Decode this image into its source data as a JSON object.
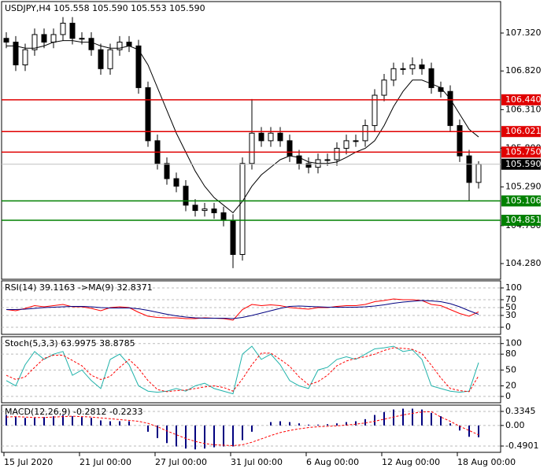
{
  "chart_data": [
    {
      "type": "candlestick",
      "title": "USDJPY,H4  105.558 105.590 105.553 105.590",
      "categories": [
        "15 Jul 2020",
        null,
        null,
        null,
        null,
        null,
        null,
        null,
        "21 Jul 00:00",
        null,
        null,
        null,
        null,
        null,
        null,
        null,
        "27 Jul 00:00",
        null,
        null,
        null,
        null,
        null,
        null,
        null,
        "31 Jul 00:00",
        null,
        null,
        null,
        null,
        null,
        null,
        null,
        "6 Aug 00:00",
        null,
        null,
        null,
        null,
        null,
        null,
        null,
        "12 Aug 00:00",
        null,
        null,
        null,
        null,
        null,
        null,
        null,
        "18 Aug 00:00",
        null,
        null
      ],
      "open": [
        107.25,
        107.2,
        106.9,
        107.1,
        107.3,
        107.2,
        107.3,
        107.45,
        107.25,
        107.25,
        107.1,
        106.85,
        107.1,
        107.2,
        107.15,
        106.6,
        105.9,
        105.6,
        105.4,
        105.3,
        105.05,
        104.98,
        105.0,
        104.95,
        104.85,
        104.4,
        105.6,
        106.0,
        105.9,
        106.0,
        105.9,
        105.7,
        105.6,
        105.55,
        105.65,
        105.65,
        105.8,
        105.9,
        105.9,
        106.1,
        106.5,
        106.7,
        106.85,
        106.85,
        106.9,
        106.85,
        106.6,
        106.55,
        106.1,
        105.7,
        105.35
      ],
      "high": [
        107.33,
        107.28,
        107.18,
        107.38,
        107.38,
        107.38,
        107.53,
        107.53,
        107.33,
        107.33,
        107.18,
        107.18,
        107.28,
        107.28,
        107.23,
        106.68,
        105.98,
        105.68,
        105.48,
        105.38,
        105.13,
        105.08,
        105.08,
        105.03,
        104.93,
        105.68,
        106.45,
        106.08,
        106.08,
        106.08,
        105.98,
        105.78,
        105.68,
        105.73,
        105.73,
        105.88,
        105.98,
        105.98,
        106.18,
        106.58,
        106.78,
        106.93,
        106.93,
        107.0,
        106.98,
        106.93,
        106.68,
        106.63,
        106.18,
        105.78,
        105.63
      ],
      "low": [
        107.12,
        106.82,
        106.82,
        107.02,
        107.12,
        107.12,
        107.22,
        107.17,
        107.17,
        107.02,
        106.77,
        106.77,
        107.02,
        107.07,
        106.52,
        105.82,
        105.52,
        105.32,
        105.22,
        104.97,
        104.9,
        104.9,
        104.87,
        104.77,
        104.22,
        104.32,
        105.52,
        105.82,
        105.82,
        105.82,
        105.62,
        105.52,
        105.47,
        105.47,
        105.57,
        105.57,
        105.72,
        105.82,
        105.82,
        106.02,
        106.42,
        106.62,
        106.77,
        106.77,
        106.77,
        106.52,
        106.47,
        106.02,
        105.62,
        105.1,
        105.27
      ],
      "close": [
        107.2,
        106.9,
        107.1,
        107.3,
        107.2,
        107.3,
        107.45,
        107.25,
        107.25,
        107.1,
        106.85,
        107.1,
        107.2,
        107.15,
        106.6,
        105.9,
        105.6,
        105.4,
        105.3,
        105.05,
        104.98,
        105.0,
        104.95,
        104.85,
        104.4,
        105.6,
        106.0,
        105.9,
        106.0,
        105.9,
        105.7,
        105.6,
        105.55,
        105.65,
        105.65,
        105.8,
        105.9,
        105.9,
        106.1,
        106.5,
        106.7,
        106.85,
        106.85,
        106.9,
        106.85,
        106.6,
        106.55,
        106.1,
        105.7,
        105.35,
        105.59
      ],
      "ma": {
        "color": "#000000",
        "values": [
          107.15,
          107.15,
          107.12,
          107.12,
          107.15,
          107.2,
          107.22,
          107.22,
          107.2,
          107.2,
          107.15,
          107.12,
          107.12,
          107.15,
          107.1,
          106.9,
          106.6,
          106.3,
          106.0,
          105.75,
          105.5,
          105.3,
          105.15,
          105.05,
          104.95,
          105.1,
          105.3,
          105.45,
          105.55,
          105.65,
          105.7,
          105.68,
          105.62,
          105.6,
          105.6,
          105.62,
          105.68,
          105.75,
          105.8,
          105.9,
          106.1,
          106.35,
          106.55,
          106.7,
          106.7,
          106.65,
          106.6,
          106.45,
          106.25,
          106.05,
          105.95
        ]
      },
      "hlines": [
        {
          "value": 106.44,
          "label": "106.440",
          "color": "#e00000"
        },
        {
          "value": 106.021,
          "label": "106.021",
          "color": "#e00000"
        },
        {
          "value": 105.75,
          "label": "105.750",
          "color": "#e00000"
        },
        {
          "value": 105.106,
          "label": "105.106",
          "color": "#008000"
        },
        {
          "value": 104.851,
          "label": "104.851",
          "color": "#008000"
        }
      ],
      "price_line": {
        "value": 105.59,
        "label": "105.590",
        "color": "#000000"
      },
      "ylim": [
        104.073,
        107.735
      ],
      "yticks": [
        {
          "value": 107.32,
          "label": "107.320"
        },
        {
          "value": 106.82,
          "label": "106.820"
        },
        {
          "value": 106.31,
          "label": "106.310"
        },
        {
          "value": 105.8,
          "label": "105.800"
        },
        {
          "value": 105.29,
          "label": "105.290"
        },
        {
          "value": 104.78,
          "label": "104.780"
        },
        {
          "value": 104.28,
          "label": "104.280"
        }
      ]
    },
    {
      "type": "line",
      "title": "RSI(14) 39.1163  ->MA(9) 32.8371",
      "series": [
        {
          "color": "#ff0000",
          "values": [
            45,
            42,
            48,
            55,
            52,
            55,
            58,
            52,
            52,
            48,
            42,
            50,
            52,
            50,
            38,
            28,
            25,
            24,
            24,
            22,
            22,
            24,
            23,
            22,
            18,
            45,
            58,
            55,
            57,
            55,
            50,
            48,
            46,
            50,
            50,
            53,
            55,
            55,
            58,
            65,
            68,
            72,
            70,
            70,
            68,
            58,
            55,
            45,
            35,
            28,
            39.1163
          ]
        },
        {
          "color": "#000080",
          "values": [
            45,
            45,
            46,
            48,
            50,
            51,
            52,
            53,
            53,
            52,
            50,
            49,
            49,
            49,
            47,
            43,
            38,
            33,
            29,
            26,
            24,
            23,
            23,
            23,
            22,
            25,
            30,
            36,
            42,
            48,
            53,
            54,
            53,
            52,
            51,
            51,
            51,
            51,
            52,
            54,
            57,
            61,
            64,
            66,
            68,
            67,
            65,
            60,
            52,
            42,
            32.8371
          ]
        }
      ],
      "ylim": [
        -18,
        118
      ],
      "yticks": [
        100,
        70,
        50,
        30,
        0
      ]
    },
    {
      "type": "line",
      "title": "Stoch(5,3,3) 63.9975 38.8785",
      "series": [
        {
          "color": "#20b2aa",
          "values": [
            30,
            20,
            60,
            85,
            70,
            80,
            85,
            40,
            50,
            30,
            15,
            70,
            80,
            60,
            20,
            10,
            8,
            10,
            15,
            10,
            20,
            25,
            15,
            10,
            5,
            80,
            95,
            70,
            80,
            60,
            30,
            20,
            15,
            50,
            55,
            70,
            75,
            70,
            80,
            90,
            92,
            95,
            85,
            88,
            70,
            20,
            15,
            10,
            8,
            10,
            63.9975
          ]
        },
        {
          "color": "#ff0000",
          "dashed": true,
          "values": [
            40,
            32,
            37,
            55,
            72,
            78,
            78,
            68,
            58,
            40,
            32,
            38,
            55,
            70,
            53,
            30,
            13,
            9,
            11,
            12,
            15,
            18,
            20,
            17,
            10,
            33,
            60,
            82,
            82,
            70,
            57,
            37,
            22,
            28,
            40,
            58,
            67,
            72,
            75,
            80,
            87,
            92,
            91,
            89,
            81,
            59,
            35,
            15,
            11,
            9,
            38.8785
          ]
        }
      ],
      "ylim": [
        -12,
        113
      ],
      "yticks": [
        100,
        80,
        50,
        20,
        0
      ]
    },
    {
      "type": "macd",
      "title": "MACD(12,26,9) -0.2812 -0.2233",
      "histogram": {
        "color": "#000080",
        "values": [
          0.25,
          0.2,
          0.18,
          0.18,
          0.2,
          0.22,
          0.25,
          0.22,
          0.2,
          0.18,
          0.12,
          0.1,
          0.1,
          0.1,
          0.0,
          -0.15,
          -0.3,
          -0.42,
          -0.5,
          -0.55,
          -0.57,
          -0.55,
          -0.52,
          -0.5,
          -0.5,
          -0.35,
          -0.15,
          0.0,
          0.08,
          0.1,
          0.08,
          0.05,
          0.02,
          0.02,
          0.03,
          0.05,
          0.08,
          0.1,
          0.15,
          0.25,
          0.32,
          0.38,
          0.4,
          0.4,
          0.38,
          0.3,
          0.22,
          0.05,
          -0.12,
          -0.27,
          -0.2812
        ]
      },
      "signal": {
        "color": "#ff0000",
        "values": [
          0.2,
          0.21,
          0.2,
          0.19,
          0.19,
          0.2,
          0.21,
          0.22,
          0.21,
          0.2,
          0.18,
          0.16,
          0.14,
          0.12,
          0.1,
          0.05,
          -0.03,
          -0.13,
          -0.22,
          -0.31,
          -0.38,
          -0.43,
          -0.46,
          -0.47,
          -0.48,
          -0.46,
          -0.4,
          -0.32,
          -0.24,
          -0.17,
          -0.12,
          -0.08,
          -0.05,
          -0.03,
          -0.02,
          -0.01,
          0.01,
          0.03,
          0.06,
          0.1,
          0.15,
          0.2,
          0.25,
          0.29,
          0.32,
          0.33,
          0.2,
          0.1,
          -0.02,
          -0.12,
          -0.2233
        ]
      },
      "ylim": [
        -0.64,
        0.484
      ],
      "yticks": [
        {
          "value": 0.3345,
          "label": "0.3345"
        },
        {
          "value": 0,
          "label": "0.00"
        },
        {
          "value": -0.4901,
          "label": "-0.4901"
        }
      ]
    }
  ]
}
